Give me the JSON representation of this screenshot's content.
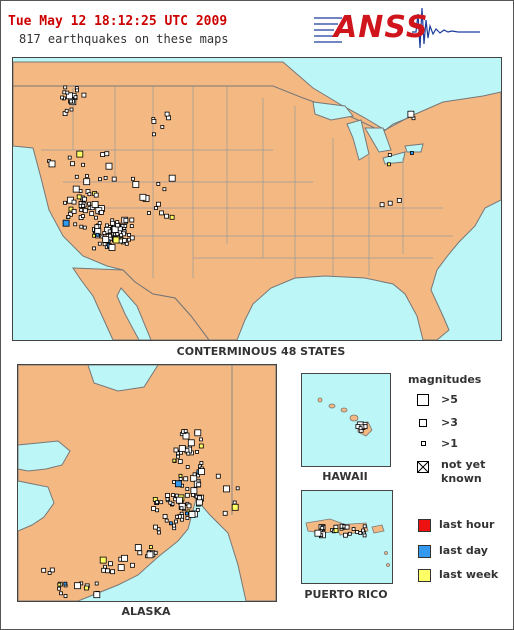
{
  "header": {
    "timestamp": "Tue May 12 18:12:25 UTC 2009",
    "count_text": "817 earthquakes on these maps"
  },
  "logo": {
    "text": "ANSS"
  },
  "maps": {
    "conus": {
      "caption": "CONTERMINOUS 48 STATES"
    },
    "alaska": {
      "caption": "ALASKA"
    },
    "hawaii": {
      "caption": "HAWAII"
    },
    "puerto_rico": {
      "caption": "PUERTO RICO"
    }
  },
  "legend": {
    "title": "magnitudes",
    "mag_gt5": ">5",
    "mag_gt3": ">3",
    "mag_gt1": ">1",
    "not_known_line1": "not yet",
    "not_known_line2": "known",
    "last_hour": "last hour",
    "last_day": "last day",
    "last_week": "last week"
  },
  "colors": {
    "land": "#f4b883",
    "water": "#bdf6f6",
    "border": "#555555",
    "last_hour": "#ee1111",
    "last_day": "#3399ee",
    "last_week": "#ffff66",
    "older": "#ffffff",
    "timestamp": "#cc0000",
    "logo": "#d0141c"
  }
}
